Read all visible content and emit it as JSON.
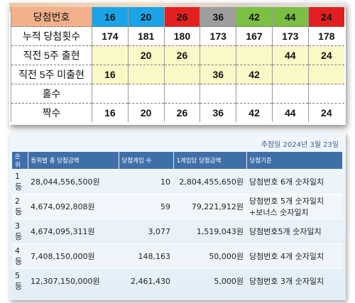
{
  "top_table": {
    "header_label": "당첨번호",
    "balls": [
      {
        "value": "16",
        "color": "#1aa3e6"
      },
      {
        "value": "20",
        "color": "#1aa3e6"
      },
      {
        "value": "26",
        "color": "#e41f1f"
      },
      {
        "value": "36",
        "color": "#9e9e9e"
      },
      {
        "value": "42",
        "color": "#7bc043"
      },
      {
        "value": "44",
        "color": "#7bc043"
      },
      {
        "value": "24",
        "color": "#e41f1f"
      }
    ],
    "rows": [
      {
        "label": "누적 당첨횟수",
        "cells": [
          "174",
          "181",
          "180",
          "173",
          "167",
          "173",
          "178"
        ],
        "style": "plain"
      },
      {
        "label": "직전 5주 출현",
        "cells": [
          "",
          "20",
          "26",
          "",
          "",
          "44",
          "24"
        ],
        "style": "appear"
      },
      {
        "label": "직전 5주 미출현",
        "cells": [
          "16",
          "",
          "",
          "36",
          "42",
          "",
          ""
        ],
        "style": "missing"
      },
      {
        "label": "홀수",
        "cells": [
          "",
          "",
          "",
          "",
          "",
          "",
          ""
        ],
        "style": "plain"
      },
      {
        "label": "짝수",
        "cells": [
          "16",
          "20",
          "26",
          "36",
          "42",
          "44",
          "24"
        ],
        "style": "plain"
      }
    ]
  },
  "draw_date": "추첨일  2024년 3월 23일",
  "prize_table": {
    "headers": [
      "순위",
      "등위별 총 당첨금액",
      "당첨게임 수",
      "1게임당 당첨금액",
      "당첨기준"
    ],
    "rows": [
      [
        "1등",
        "28,044,556,500원",
        "10",
        "2,804,455,650원",
        "당첨번호 6개 숫자일치"
      ],
      [
        "2등",
        "4,674,092,808원",
        "59",
        "79,221,912원",
        "당첨번호 5개 숫자일치 +보너스 숫자일치"
      ],
      [
        "3등",
        "4,674,095,311원",
        "3,077",
        "1,519,043원",
        "당첨번호5개 숫자일치"
      ],
      [
        "4등",
        "7,408,150,000원",
        "148,163",
        "50,000원",
        "당첨번호 4개 숫자일치"
      ],
      [
        "5등",
        "12,307,150,000원",
        "2,461,430",
        "5,000원",
        "당첨번호 3개 숫자일치"
      ]
    ]
  }
}
